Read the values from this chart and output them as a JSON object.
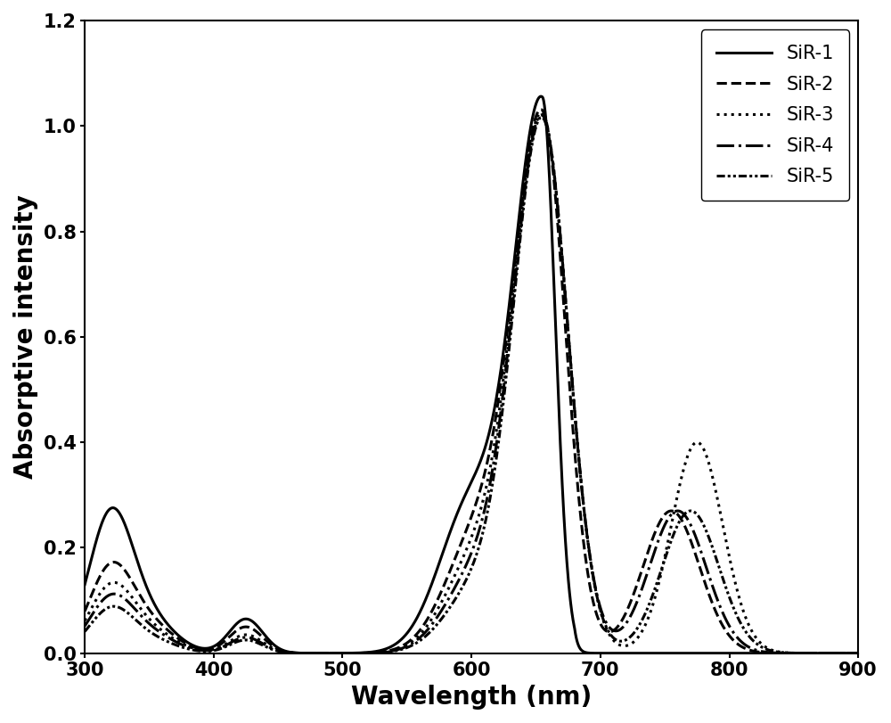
{
  "title": "",
  "xlabel": "Wavelength (nm)",
  "ylabel": "Absorptive intensity",
  "xlim": [
    300,
    900
  ],
  "ylim": [
    0.0,
    1.2
  ],
  "xticks": [
    300,
    400,
    500,
    600,
    700,
    800,
    900
  ],
  "yticks": [
    0.0,
    0.2,
    0.4,
    0.6,
    0.8,
    1.0,
    1.2
  ],
  "series": [
    {
      "label": "SiR-1",
      "linewidth": 2.2,
      "color": "#000000"
    },
    {
      "label": "SiR-2",
      "linewidth": 2.2,
      "color": "#000000"
    },
    {
      "label": "SiR-3",
      "linewidth": 2.2,
      "color": "#000000"
    },
    {
      "label": "SiR-4",
      "linewidth": 2.2,
      "color": "#000000"
    },
    {
      "label": "SiR-5",
      "linewidth": 2.2,
      "color": "#000000"
    }
  ],
  "legend_loc": "upper right",
  "legend_fontsize": 15,
  "axis_fontsize": 20,
  "tick_fontsize": 15,
  "figure_width": 10.0,
  "figure_height": 8.11
}
